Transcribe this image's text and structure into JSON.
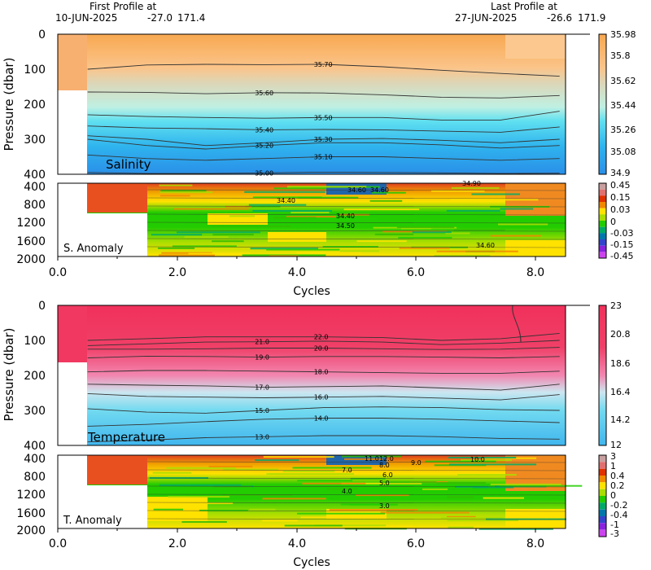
{
  "header": {
    "first_label": "First Profile at",
    "first_date": "10-JUN-2025",
    "first_lat": "-27.0",
    "first_lon": "171.4",
    "last_label": "Last Profile at",
    "last_date": "27-JUN-2025",
    "last_lat": "-26.6",
    "last_lon": "171.9"
  },
  "chart_data": [
    {
      "type": "heatmap",
      "panel": "salinity",
      "label": "Salinity",
      "ylabel": "Pressure (dbar)",
      "xlabel": "",
      "xlim": [
        0,
        8.5
      ],
      "ylim": [
        400,
        0
      ],
      "yticks": [
        "0",
        "100",
        "200",
        "300",
        "400"
      ],
      "colorbar": {
        "ticks": [
          "35.98",
          "35.8",
          "35.62",
          "35.44",
          "35.26",
          "35.08",
          "34.9"
        ],
        "colors": [
          "#f8a850",
          "#fbc48a",
          "#dcd6b8",
          "#bff0e2",
          "#60e0f0",
          "#2fb4ee",
          "#2a8fe8"
        ]
      },
      "contours": [
        {
          "label": "35.70",
          "y": [
            100,
            88,
            86,
            87,
            86,
            93,
            103,
            112,
            120
          ]
        },
        {
          "label": "35.60",
          "y": [
            165,
            166,
            170,
            167,
            168,
            173,
            180,
            182,
            175
          ]
        },
        {
          "label": "35.50",
          "y": [
            230,
            235,
            238,
            240,
            238,
            238,
            245,
            245,
            220
          ]
        },
        {
          "label": "35.40",
          "y": [
            262,
            268,
            270,
            273,
            272,
            273,
            277,
            280,
            265
          ]
        },
        {
          "label": "35.30",
          "y": [
            290,
            300,
            318,
            310,
            300,
            298,
            303,
            310,
            300
          ]
        },
        {
          "label": "35.20",
          "y": [
            300,
            318,
            328,
            318,
            310,
            310,
            316,
            325,
            318
          ]
        },
        {
          "label": "35.10",
          "y": [
            345,
            355,
            360,
            355,
            350,
            350,
            355,
            360,
            355
          ]
        },
        {
          "label": "35.00",
          "y": [
            395,
            398,
            398,
            396,
            394,
            395,
            396,
            398,
            397
          ]
        }
      ]
    },
    {
      "type": "heatmap",
      "panel": "salinity-anomaly",
      "label": "S. Anomaly",
      "ylabel": "",
      "xlabel": "Cycles",
      "xlim": [
        0,
        8.5
      ],
      "ylim": [
        2000,
        400
      ],
      "xticks": [
        "0.0",
        "2.0",
        "4.0",
        "6.0",
        "8.0"
      ],
      "yticks": [
        "400",
        "800",
        "1200",
        "1600",
        "2000"
      ],
      "colorbar": {
        "ticks": [
          "0.45",
          "0.15",
          "0.03",
          "0",
          "-0.03",
          "-0.15",
          "-0.45"
        ],
        "colors": [
          "#c9a0a0",
          "#e07070",
          "#e03000",
          "#f08800",
          "#ffe200",
          "#aadd00",
          "#22cc00",
          "#00aa66",
          "#0077aa",
          "#3344cc",
          "#8822dd",
          "#cc44ee"
        ]
      },
      "contour_labels": [
        "34.90",
        "34.60",
        "34.60",
        "34.40",
        "34.40",
        "34.50",
        "34.60"
      ]
    },
    {
      "type": "heatmap",
      "panel": "temperature",
      "label": "Temperature",
      "ylabel": "Pressure (dbar)",
      "xlabel": "",
      "xlim": [
        0,
        8.5
      ],
      "ylim": [
        400,
        0
      ],
      "yticks": [
        "0",
        "100",
        "200",
        "300",
        "400"
      ],
      "colorbar": {
        "ticks": [
          "23",
          "20.8",
          "18.6",
          "16.4",
          "14.2",
          "12"
        ],
        "colors": [
          "#f0305a",
          "#f2688f",
          "#f2a6c4",
          "#cce6f0",
          "#72daf0",
          "#40b6ee"
        ]
      },
      "contours": [
        {
          "label": "22.0",
          "y": [
            100,
            95,
            90,
            90,
            90,
            92,
            100,
            95,
            80
          ]
        },
        {
          "label": "21.0",
          "y": [
            115,
            110,
            105,
            104,
            102,
            105,
            112,
            108,
            100
          ]
        },
        {
          "label": "20.0",
          "y": [
            125,
            125,
            124,
            122,
            122,
            124,
            126,
            125,
            120
          ]
        },
        {
          "label": "19.0",
          "y": [
            150,
            145,
            146,
            148,
            146,
            146,
            148,
            150,
            146
          ]
        },
        {
          "label": "18.0",
          "y": [
            190,
            186,
            186,
            188,
            190,
            192,
            194,
            194,
            188
          ]
        },
        {
          "label": "17.0",
          "y": [
            225,
            228,
            230,
            234,
            232,
            230,
            236,
            242,
            225
          ]
        },
        {
          "label": "16.0",
          "y": [
            252,
            260,
            262,
            264,
            262,
            260,
            265,
            270,
            255
          ]
        },
        {
          "label": "15.0",
          "y": [
            295,
            305,
            308,
            300,
            292,
            290,
            292,
            298,
            300
          ]
        },
        {
          "label": "14.0",
          "y": [
            345,
            340,
            332,
            325,
            322,
            322,
            325,
            330,
            335
          ]
        },
        {
          "label": "13.0",
          "y": [
            390,
            385,
            378,
            375,
            372,
            372,
            375,
            380,
            382
          ]
        }
      ]
    },
    {
      "type": "heatmap",
      "panel": "temperature-anomaly",
      "label": "T. Anomaly",
      "ylabel": "",
      "xlabel": "Cycles",
      "xlim": [
        0,
        8.5
      ],
      "ylim": [
        2000,
        400
      ],
      "xticks": [
        "0.0",
        "2.0",
        "4.0",
        "6.0",
        "8.0"
      ],
      "yticks": [
        "400",
        "800",
        "1200",
        "1600",
        "2000"
      ],
      "colorbar": {
        "ticks": [
          "3",
          "1",
          "0.4",
          "0.2",
          "0",
          "-0.2",
          "-0.4",
          "-1",
          "-3"
        ],
        "colors": [
          "#c9a0a0",
          "#e07070",
          "#e03000",
          "#f08800",
          "#ffe200",
          "#aadd00",
          "#22cc00",
          "#00aa66",
          "#0077aa",
          "#3344cc",
          "#8822dd",
          "#cc44ee"
        ]
      },
      "contour_labels": [
        "11.0",
        "12.0",
        "10.0",
        "9.0",
        "8.0",
        "7.0",
        "6.0",
        "5.0",
        "4.0",
        "3.0"
      ]
    }
  ]
}
